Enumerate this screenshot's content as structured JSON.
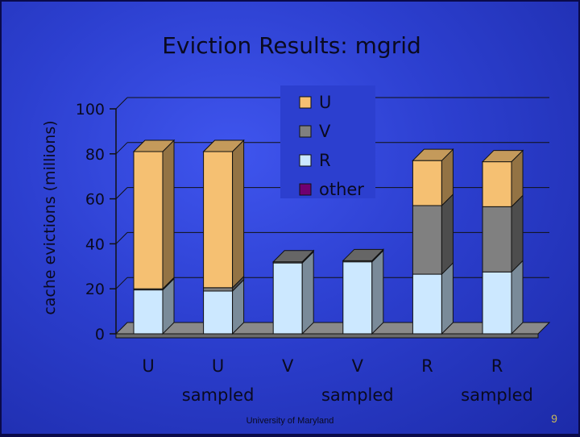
{
  "slide": {
    "title": "Eviction Results: mgrid",
    "footer": "University of Maryland",
    "page_number": "9",
    "background_color": "#2c3fcf"
  },
  "chart_data": {
    "type": "bar",
    "stacked": true,
    "three_d": true,
    "title": "",
    "xlabel": "",
    "ylabel": "cache evictions (millions)",
    "ylim": [
      0,
      100
    ],
    "yticks": [
      0,
      20,
      40,
      60,
      80,
      100
    ],
    "grid": "horizontal",
    "legend_position": "top-right",
    "categories": [
      {
        "line1": "U",
        "line2": ""
      },
      {
        "line1": "U",
        "line2": "sampled"
      },
      {
        "line1": "V",
        "line2": ""
      },
      {
        "line1": "V",
        "line2": "sampled"
      },
      {
        "line1": "R",
        "line2": ""
      },
      {
        "line1": "R",
        "line2": "sampled"
      }
    ],
    "series": [
      {
        "name": "R",
        "color": "#cce8ff",
        "values": [
          19.5,
          19,
          31.5,
          32,
          26.5,
          27.5
        ]
      },
      {
        "name": "V",
        "color": "#808080",
        "values": [
          0.5,
          1.5,
          0.5,
          0.5,
          30.5,
          29
        ]
      },
      {
        "name": "U",
        "color": "#f5c072",
        "values": [
          61,
          60.5,
          0,
          0,
          20,
          20
        ]
      },
      {
        "name": "other",
        "color": "#700070",
        "values": [
          0,
          0,
          0,
          0,
          0,
          0
        ]
      }
    ],
    "legend_order": [
      "U",
      "V",
      "R",
      "other"
    ]
  }
}
